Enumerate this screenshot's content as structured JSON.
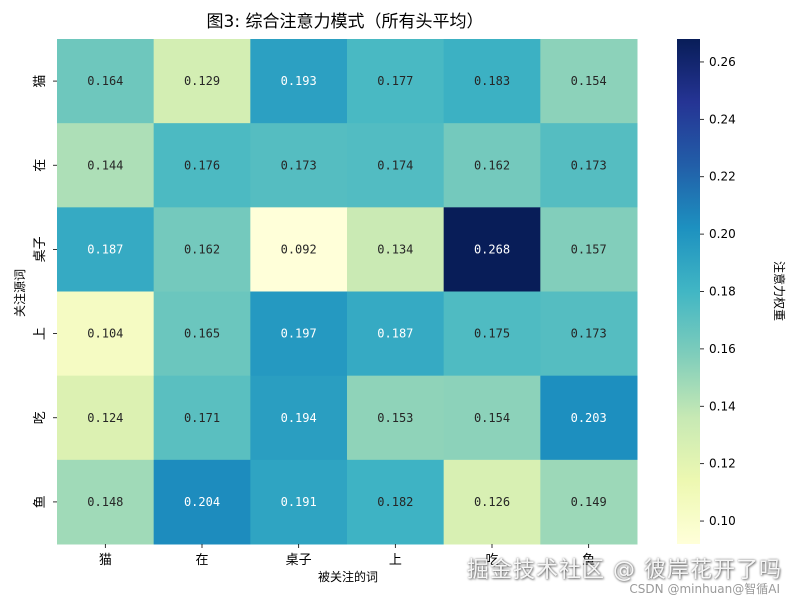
{
  "chart_data": {
    "type": "heatmap",
    "title": "图3: 综合注意力模式（所有头平均）",
    "xlabel": "被关注的词",
    "ylabel": "关注源词",
    "x_categories": [
      "猫",
      "在",
      "桌子",
      "上",
      "吃",
      "鱼"
    ],
    "y_categories": [
      "猫",
      "在",
      "桌子",
      "上",
      "吃",
      "鱼"
    ],
    "values": [
      [
        0.164,
        0.129,
        0.193,
        0.177,
        0.183,
        0.154
      ],
      [
        0.144,
        0.176,
        0.173,
        0.174,
        0.162,
        0.173
      ],
      [
        0.187,
        0.162,
        0.092,
        0.134,
        0.268,
        0.157
      ],
      [
        0.104,
        0.165,
        0.197,
        0.187,
        0.175,
        0.173
      ],
      [
        0.124,
        0.171,
        0.194,
        0.153,
        0.154,
        0.203
      ],
      [
        0.148,
        0.204,
        0.191,
        0.182,
        0.126,
        0.149
      ]
    ],
    "colorbar": {
      "label": "注意力权重",
      "min": 0.092,
      "max": 0.268,
      "ticks": [
        0.1,
        0.12,
        0.14,
        0.16,
        0.18,
        0.2,
        0.22,
        0.24,
        0.26
      ],
      "tick_labels": [
        "0.10",
        "0.12",
        "0.14",
        "0.16",
        "0.18",
        "0.20",
        "0.22",
        "0.24",
        "0.26"
      ]
    },
    "colormap": "YlGnBu",
    "colormap_stops": [
      "#ffffd9",
      "#edf8b1",
      "#c7e9b4",
      "#7fcdbb",
      "#41b6c4",
      "#1d91c0",
      "#225ea8",
      "#253494",
      "#081d58"
    ],
    "text_dark_color": "#262626",
    "text_light_color": "#ffffff"
  },
  "watermark": {
    "main": "掘金技术社区 @ 彼岸花开了吗",
    "sub": "CSDN @minhuan@智循AI"
  }
}
